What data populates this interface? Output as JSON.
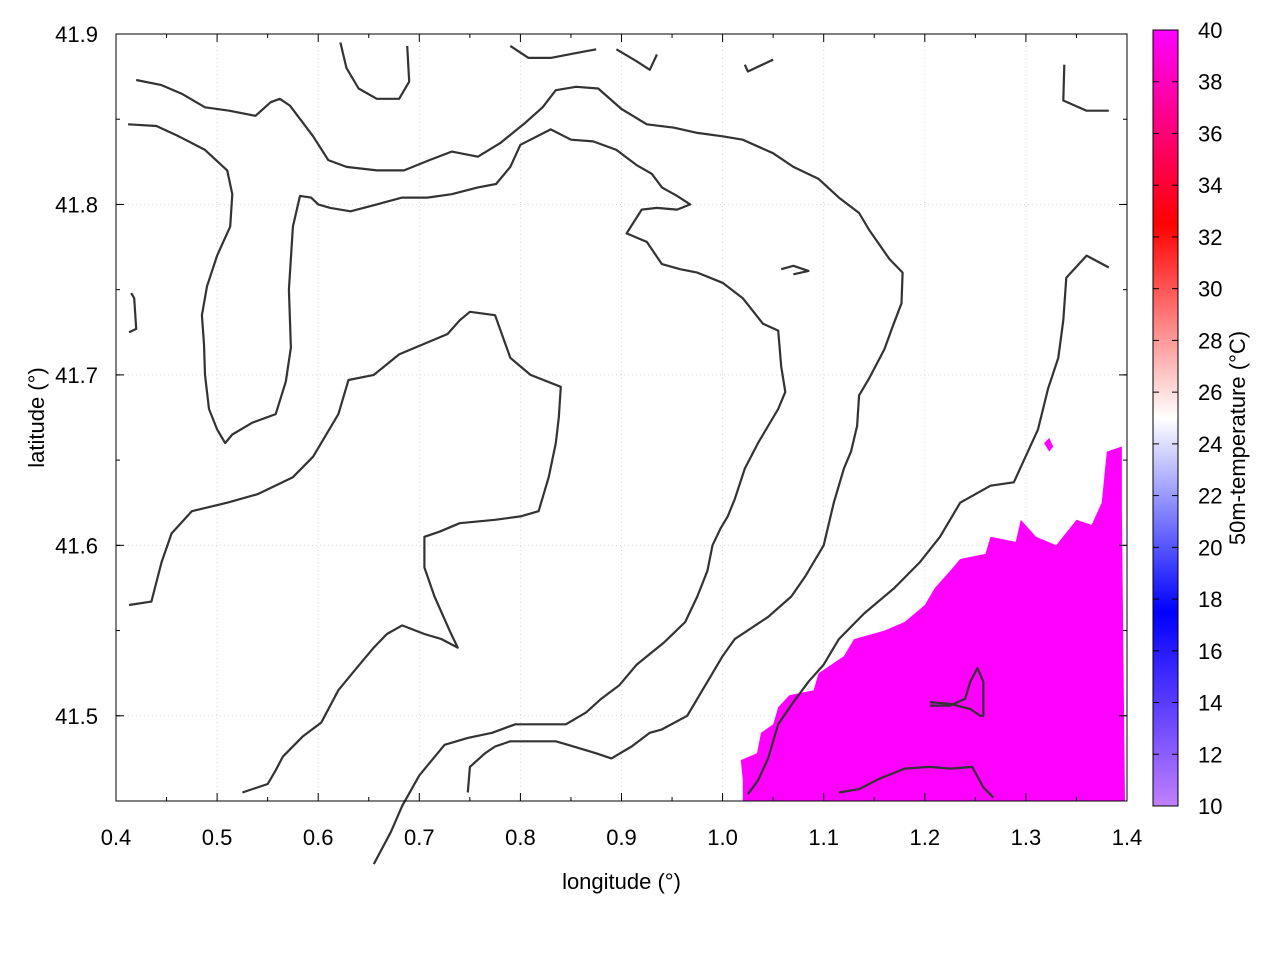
{
  "chart_data": {
    "type": "heatmap",
    "xlabel": "longitude (°)",
    "ylabel": "latitude (°)",
    "xlim": [
      0.4,
      1.4
    ],
    "ylim": [
      41.45,
      41.9
    ],
    "x_ticks": [
      "0.4",
      "0.5",
      "0.6",
      "0.7",
      "0.8",
      "0.9",
      "1.0",
      "1.1",
      "1.2",
      "1.3",
      "1.4"
    ],
    "y_ticks": [
      "41.5",
      "41.6",
      "41.7",
      "41.8",
      "41.9"
    ],
    "grid": true,
    "colorbar": {
      "label": "50m-temperature (°C)",
      "range": [
        10,
        40
      ],
      "ticks": [
        "10",
        "12",
        "14",
        "16",
        "18",
        "20",
        "22",
        "24",
        "26",
        "28",
        "30",
        "32",
        "34",
        "36",
        "38",
        "40"
      ],
      "colors": [
        "#c080ff",
        "#0000ff",
        "#ffffff",
        "#ff0000",
        "#ff00ff"
      ]
    },
    "region_value": 40,
    "region_color": "#ff00ff",
    "region_outline": [
      [
        1.02,
        41.45
      ],
      [
        1.02,
        41.462
      ],
      [
        1.018,
        41.474
      ],
      [
        1.034,
        41.478
      ],
      [
        1.038,
        41.49
      ],
      [
        1.05,
        41.495
      ],
      [
        1.055,
        41.505
      ],
      [
        1.066,
        41.512
      ],
      [
        1.09,
        41.515
      ],
      [
        1.095,
        41.525
      ],
      [
        1.12,
        41.535
      ],
      [
        1.13,
        41.545
      ],
      [
        1.16,
        41.55
      ],
      [
        1.18,
        41.555
      ],
      [
        1.2,
        41.565
      ],
      [
        1.21,
        41.575
      ],
      [
        1.225,
        41.585
      ],
      [
        1.235,
        41.592
      ],
      [
        1.26,
        41.595
      ],
      [
        1.265,
        41.605
      ],
      [
        1.29,
        41.602
      ],
      [
        1.295,
        41.615
      ],
      [
        1.31,
        41.605
      ],
      [
        1.33,
        41.6
      ],
      [
        1.35,
        41.615
      ],
      [
        1.365,
        41.612
      ],
      [
        1.375,
        41.625
      ],
      [
        1.38,
        41.655
      ],
      [
        1.395,
        41.658
      ],
      [
        1.395,
        41.62
      ],
      [
        1.398,
        41.45
      ]
    ],
    "region_spots": [
      [
        1.318,
        41.66
      ],
      [
        1.323,
        41.663
      ],
      [
        1.327,
        41.658
      ],
      [
        1.323,
        41.655
      ]
    ],
    "contours": [
      [
        [
          0.42,
          41.873
        ],
        [
          0.445,
          41.87
        ],
        [
          0.465,
          41.865
        ],
        [
          0.488,
          41.857
        ],
        [
          0.512,
          41.855
        ],
        [
          0.538,
          41.852
        ],
        [
          0.553,
          41.86
        ],
        [
          0.562,
          41.862
        ],
        [
          0.572,
          41.858
        ],
        [
          0.595,
          41.84
        ],
        [
          0.61,
          41.826
        ],
        [
          0.628,
          41.822
        ],
        [
          0.658,
          41.82
        ],
        [
          0.685,
          41.82
        ],
        [
          0.71,
          41.826
        ],
        [
          0.732,
          41.831
        ],
        [
          0.758,
          41.828
        ],
        [
          0.78,
          41.836
        ],
        [
          0.805,
          41.848
        ],
        [
          0.822,
          41.857
        ],
        [
          0.835,
          41.867
        ],
        [
          0.855,
          41.869
        ],
        [
          0.877,
          41.868
        ],
        [
          0.9,
          41.856
        ],
        [
          0.925,
          41.847
        ],
        [
          0.952,
          41.845
        ],
        [
          0.975,
          41.842
        ],
        [
          1.0,
          41.84
        ],
        [
          1.02,
          41.838
        ],
        [
          1.05,
          41.83
        ],
        [
          1.07,
          41.822
        ],
        [
          1.095,
          41.815
        ],
        [
          1.115,
          41.804
        ],
        [
          1.135,
          41.795
        ],
        [
          1.145,
          41.785
        ],
        [
          1.165,
          41.768
        ],
        [
          1.178,
          41.76
        ],
        [
          1.177,
          41.742
        ],
        [
          1.168,
          41.728
        ],
        [
          1.16,
          41.715
        ],
        [
          1.145,
          41.698
        ],
        [
          1.135,
          41.688
        ],
        [
          1.133,
          41.67
        ],
        [
          1.127,
          41.655
        ],
        [
          1.12,
          41.645
        ],
        [
          1.11,
          41.625
        ],
        [
          1.1,
          41.6
        ],
        [
          1.082,
          41.582
        ],
        [
          1.068,
          41.57
        ],
        [
          1.045,
          41.558
        ],
        [
          1.012,
          41.545
        ],
        [
          1.0,
          41.535
        ],
        [
          0.99,
          41.525
        ],
        [
          0.965,
          41.5
        ],
        [
          0.94,
          41.492
        ],
        [
          0.928,
          41.49
        ],
        [
          0.91,
          41.482
        ],
        [
          0.89,
          41.475
        ],
        [
          0.875,
          41.478
        ],
        [
          0.847,
          41.483
        ],
        [
          0.835,
          41.485
        ],
        [
          0.812,
          41.485
        ],
        [
          0.79,
          41.485
        ],
        [
          0.775,
          41.482
        ],
        [
          0.765,
          41.478
        ],
        [
          0.75,
          41.47
        ],
        [
          0.748,
          41.455
        ]
      ],
      [
        [
          0.412,
          41.847
        ],
        [
          0.44,
          41.846
        ],
        [
          0.462,
          41.84
        ],
        [
          0.488,
          41.832
        ],
        [
          0.51,
          41.82
        ],
        [
          0.515,
          41.806
        ],
        [
          0.513,
          41.787
        ],
        [
          0.5,
          41.77
        ],
        [
          0.49,
          41.752
        ],
        [
          0.485,
          41.735
        ],
        [
          0.487,
          41.718
        ],
        [
          0.488,
          41.7
        ],
        [
          0.492,
          41.68
        ],
        [
          0.5,
          41.668
        ],
        [
          0.508,
          41.66
        ],
        [
          0.515,
          41.665
        ],
        [
          0.535,
          41.672
        ],
        [
          0.558,
          41.677
        ],
        [
          0.568,
          41.696
        ],
        [
          0.573,
          41.716
        ],
        [
          0.571,
          41.75
        ],
        [
          0.575,
          41.787
        ],
        [
          0.582,
          41.805
        ],
        [
          0.593,
          41.804
        ],
        [
          0.6,
          41.8
        ],
        [
          0.612,
          41.798
        ],
        [
          0.632,
          41.796
        ],
        [
          0.658,
          41.8
        ],
        [
          0.683,
          41.804
        ],
        [
          0.708,
          41.804
        ],
        [
          0.732,
          41.806
        ],
        [
          0.758,
          41.81
        ],
        [
          0.776,
          41.812
        ],
        [
          0.79,
          41.822
        ],
        [
          0.8,
          41.835
        ],
        [
          0.83,
          41.844
        ],
        [
          0.85,
          41.838
        ],
        [
          0.872,
          41.837
        ],
        [
          0.895,
          41.832
        ],
        [
          0.915,
          41.823
        ],
        [
          0.93,
          41.818
        ],
        [
          0.94,
          41.81
        ],
        [
          0.955,
          41.805
        ],
        [
          0.968,
          41.8
        ],
        [
          0.955,
          41.797
        ],
        [
          0.935,
          41.798
        ],
        [
          0.92,
          41.797
        ],
        [
          0.905,
          41.783
        ],
        [
          0.925,
          41.778
        ],
        [
          0.94,
          41.765
        ],
        [
          0.958,
          41.762
        ],
        [
          0.975,
          41.76
        ],
        [
          1.0,
          41.754
        ],
        [
          1.02,
          41.745
        ],
        [
          1.04,
          41.73
        ],
        [
          1.055,
          41.726
        ],
        [
          1.058,
          41.705
        ],
        [
          1.062,
          41.69
        ],
        [
          1.055,
          41.68
        ],
        [
          1.045,
          41.67
        ],
        [
          1.035,
          41.66
        ],
        [
          1.022,
          41.645
        ],
        [
          1.012,
          41.627
        ],
        [
          1.005,
          41.617
        ],
        [
          0.998,
          41.61
        ],
        [
          0.99,
          41.6
        ],
        [
          0.985,
          41.585
        ],
        [
          0.975,
          41.57
        ],
        [
          0.963,
          41.555
        ],
        [
          0.942,
          41.543
        ],
        [
          0.915,
          41.53
        ],
        [
          0.898,
          41.518
        ],
        [
          0.88,
          41.51
        ],
        [
          0.865,
          41.502
        ],
        [
          0.845,
          41.495
        ],
        [
          0.818,
          41.495
        ],
        [
          0.795,
          41.495
        ],
        [
          0.772,
          41.49
        ],
        [
          0.748,
          41.487
        ],
        [
          0.725,
          41.483
        ],
        [
          0.7,
          41.465
        ],
        [
          0.683,
          41.447
        ],
        [
          0.672,
          41.432
        ],
        [
          0.655,
          41.413
        ]
      ],
      [
        [
          0.413,
          41.725
        ],
        [
          0.42,
          41.727
        ],
        [
          0.418,
          41.745
        ],
        [
          0.415,
          41.748
        ]
      ],
      [
        [
          0.413,
          41.565
        ],
        [
          0.435,
          41.567
        ],
        [
          0.445,
          41.59
        ],
        [
          0.455,
          41.607
        ],
        [
          0.475,
          41.62
        ],
        [
          0.51,
          41.625
        ],
        [
          0.54,
          41.63
        ],
        [
          0.575,
          41.64
        ],
        [
          0.595,
          41.652
        ],
        [
          0.62,
          41.677
        ],
        [
          0.63,
          41.697
        ],
        [
          0.655,
          41.7
        ],
        [
          0.68,
          41.712
        ],
        [
          0.7,
          41.717
        ],
        [
          0.728,
          41.724
        ],
        [
          0.74,
          41.732
        ],
        [
          0.75,
          41.737
        ],
        [
          0.775,
          41.735
        ],
        [
          0.79,
          41.71
        ],
        [
          0.8,
          41.705
        ],
        [
          0.81,
          41.7
        ],
        [
          0.84,
          41.693
        ],
        [
          0.838,
          41.675
        ],
        [
          0.835,
          41.66
        ],
        [
          0.828,
          41.64
        ],
        [
          0.818,
          41.62
        ],
        [
          0.8,
          41.617
        ],
        [
          0.775,
          41.615
        ],
        [
          0.74,
          41.613
        ],
        [
          0.72,
          41.608
        ],
        [
          0.705,
          41.605
        ],
        [
          0.705,
          41.587
        ],
        [
          0.715,
          41.57
        ],
        [
          0.73,
          41.55
        ],
        [
          0.738,
          41.54
        ],
        [
          0.722,
          41.545
        ],
        [
          0.705,
          41.548
        ],
        [
          0.683,
          41.553
        ],
        [
          0.668,
          41.548
        ],
        [
          0.655,
          41.54
        ],
        [
          0.638,
          41.528
        ],
        [
          0.62,
          41.515
        ],
        [
          0.603,
          41.496
        ],
        [
          0.585,
          41.488
        ],
        [
          0.565,
          41.476
        ],
        [
          0.558,
          41.468
        ],
        [
          0.55,
          41.46
        ],
        [
          0.525,
          41.455
        ]
      ],
      [
        [
          0.622,
          41.895
        ],
        [
          0.628,
          41.88
        ],
        [
          0.64,
          41.868
        ],
        [
          0.658,
          41.862
        ],
        [
          0.68,
          41.862
        ],
        [
          0.69,
          41.872
        ],
        [
          0.688,
          41.893
        ]
      ],
      [
        [
          0.79,
          41.893
        ],
        [
          0.808,
          41.886
        ],
        [
          0.83,
          41.886
        ],
        [
          0.857,
          41.889
        ],
        [
          0.875,
          41.891
        ]
      ],
      [
        [
          0.895,
          41.891
        ],
        [
          0.915,
          41.884
        ],
        [
          0.928,
          41.879
        ],
        [
          0.935,
          41.888
        ]
      ],
      [
        [
          1.022,
          41.882
        ],
        [
          1.025,
          41.878
        ],
        [
          1.05,
          41.885
        ]
      ],
      [
        [
          1.338,
          41.882
        ],
        [
          1.337,
          41.861
        ],
        [
          1.36,
          41.855
        ],
        [
          1.382,
          41.855
        ]
      ],
      [
        [
          1.058,
          41.762
        ],
        [
          1.07,
          41.764
        ],
        [
          1.085,
          41.761
        ],
        [
          1.07,
          41.759
        ]
      ],
      [
        [
          1.025,
          41.454
        ],
        [
          1.035,
          41.462
        ],
        [
          1.045,
          41.475
        ],
        [
          1.055,
          41.495
        ],
        [
          1.07,
          41.508
        ],
        [
          1.085,
          41.52
        ],
        [
          1.1,
          41.53
        ],
        [
          1.115,
          41.545
        ],
        [
          1.14,
          41.56
        ],
        [
          1.17,
          41.575
        ],
        [
          1.195,
          41.59
        ],
        [
          1.215,
          41.605
        ],
        [
          1.235,
          41.625
        ],
        [
          1.265,
          41.635
        ],
        [
          1.288,
          41.637
        ],
        [
          1.302,
          41.655
        ],
        [
          1.312,
          41.668
        ],
        [
          1.322,
          41.692
        ],
        [
          1.332,
          41.71
        ],
        [
          1.337,
          41.732
        ],
        [
          1.34,
          41.757
        ],
        [
          1.36,
          41.77
        ],
        [
          1.382,
          41.763
        ]
      ],
      [
        [
          1.115,
          41.455
        ],
        [
          1.135,
          41.457
        ],
        [
          1.155,
          41.463
        ],
        [
          1.18,
          41.469
        ],
        [
          1.205,
          41.47
        ],
        [
          1.225,
          41.469
        ],
        [
          1.247,
          41.47
        ],
        [
          1.258,
          41.458
        ],
        [
          1.268,
          41.452
        ]
      ],
      [
        [
          1.205,
          41.508
        ],
        [
          1.225,
          41.507
        ],
        [
          1.245,
          41.504
        ],
        [
          1.255,
          41.5
        ],
        [
          1.258,
          41.5
        ],
        [
          1.258,
          41.52
        ],
        [
          1.252,
          41.528
        ],
        [
          1.245,
          41.52
        ],
        [
          1.24,
          41.51
        ],
        [
          1.225,
          41.506
        ],
        [
          1.205,
          41.506
        ]
      ]
    ]
  }
}
